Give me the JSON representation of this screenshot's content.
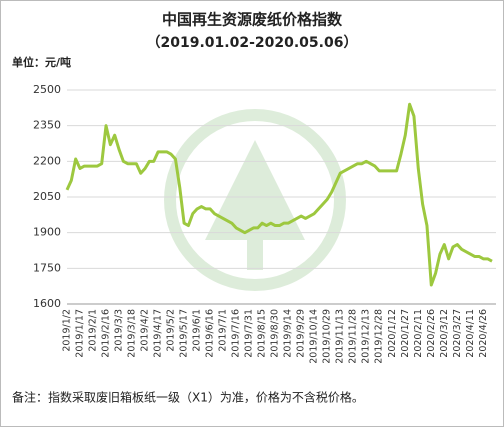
{
  "chart_data": {
    "type": "line",
    "title": "中国再生资源废纸价格指数",
    "subtitle": "（2019.01.02-2020.05.06）",
    "unit_label": "单位：元/吨",
    "note": "备注：指数采取废旧箱板纸一级（X1）为准，价格为不含税价格。",
    "categories": [
      "2019/1/2",
      null,
      null,
      "2019/1/17",
      null,
      null,
      "2019/2/1",
      null,
      null,
      "2019/2/16",
      null,
      null,
      "2019/3/3",
      null,
      null,
      "2019/3/18",
      null,
      null,
      "2019/4/2",
      null,
      null,
      "2019/4/17",
      null,
      null,
      "2019/5/2",
      null,
      null,
      "2019/5/17",
      null,
      null,
      "2019/6/1",
      null,
      null,
      "2019/6/16",
      null,
      null,
      "2019/7/1",
      null,
      null,
      "2019/7/16",
      null,
      null,
      "2019/7/31",
      null,
      null,
      "2019/8/15",
      null,
      null,
      "2019/8/30",
      null,
      null,
      "2019/9/14",
      null,
      null,
      "2019/9/29",
      null,
      null,
      "2019/10/14",
      null,
      null,
      "2019/10/29",
      null,
      null,
      "2019/11/13",
      null,
      null,
      "2019/11/28",
      null,
      null,
      "2019/12/13",
      null,
      null,
      "2019/12/28",
      null,
      null,
      "2020/1/12",
      null,
      null,
      "2020/1/27",
      null,
      null,
      "2020/2/11",
      null,
      null,
      "2020/2/26",
      null,
      null,
      "2020/3/12",
      null,
      null,
      "2020/3/27",
      null,
      null,
      "2020/4/11",
      null,
      null,
      "2020/4/26",
      null,
      null
    ],
    "values": [
      2080,
      2120,
      2210,
      2170,
      2180,
      2180,
      2180,
      2180,
      2190,
      2350,
      2270,
      2310,
      2250,
      2200,
      2190,
      2190,
      2190,
      2150,
      2170,
      2200,
      2200,
      2240,
      2240,
      2240,
      2230,
      2210,
      2090,
      1940,
      1930,
      1980,
      2000,
      2010,
      2000,
      2000,
      1980,
      1970,
      1960,
      1950,
      1940,
      1920,
      1910,
      1900,
      1910,
      1920,
      1920,
      1940,
      1930,
      1940,
      1930,
      1930,
      1940,
      1940,
      1950,
      1960,
      1970,
      1960,
      1970,
      1980,
      2000,
      2020,
      2040,
      2070,
      2110,
      2150,
      2160,
      2170,
      2180,
      2190,
      2190,
      2200,
      2190,
      2180,
      2160,
      2160,
      2160,
      2160,
      2160,
      2230,
      2310,
      2440,
      2390,
      2170,
      2020,
      1930,
      1680,
      1730,
      1810,
      1850,
      1790,
      1840,
      1850,
      1830,
      1820,
      1810,
      1800,
      1800,
      1790,
      1790,
      1780
    ],
    "color": "#9dc83f",
    "ylim": [
      1600,
      2500
    ],
    "yticks": [
      1600,
      1750,
      1900,
      2050,
      2200,
      2350,
      2500
    ],
    "grid": true
  }
}
